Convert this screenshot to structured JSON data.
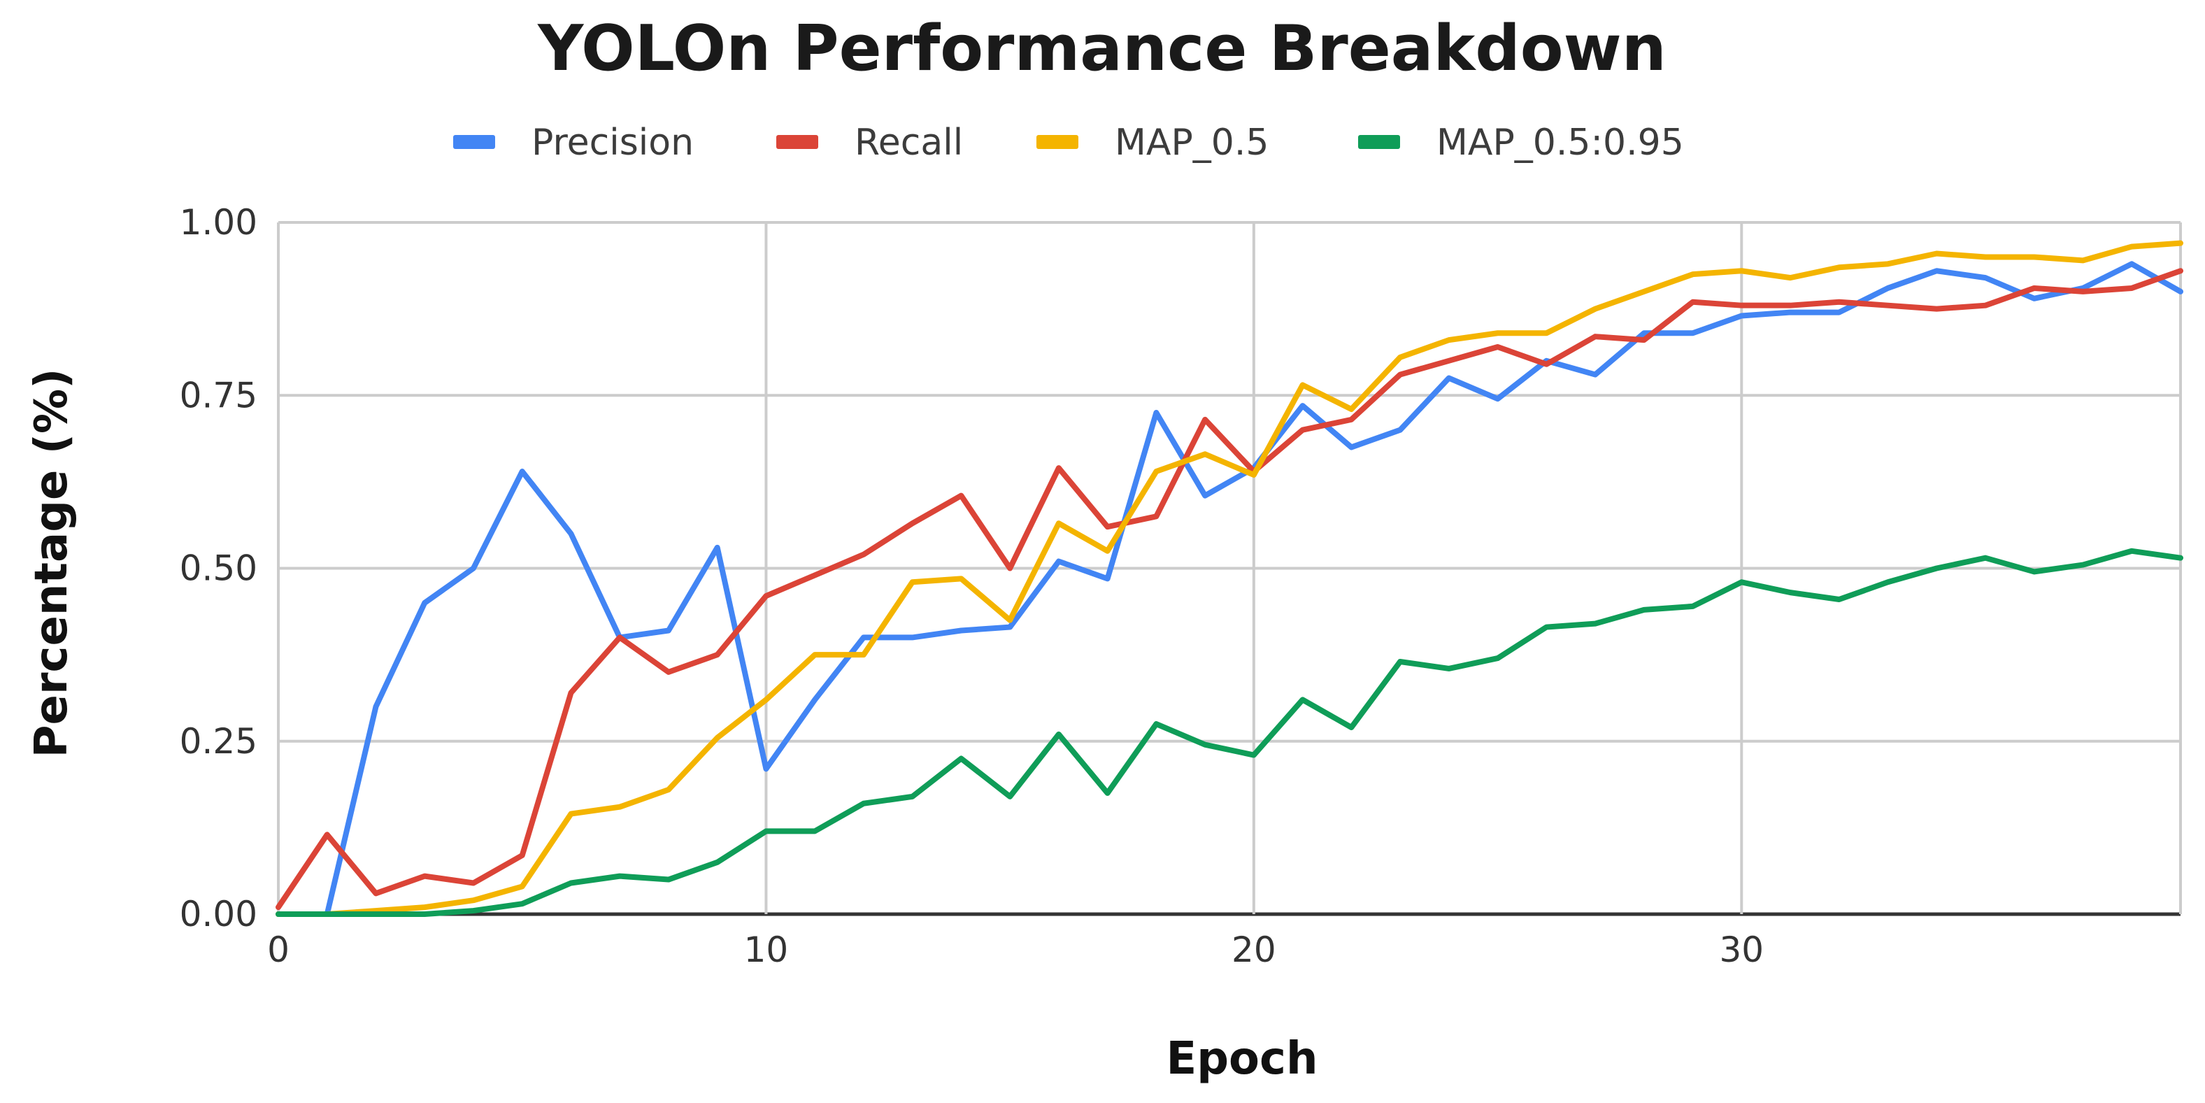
{
  "chart_data": {
    "type": "line",
    "title": "YOLOn Performance Breakdown",
    "xlabel": "Epoch",
    "ylabel": "Percentage (%)",
    "xlim": [
      0,
      39
    ],
    "ylim": [
      0,
      1
    ],
    "x_ticks": [
      "0",
      "10",
      "20",
      "30"
    ],
    "y_ticks": [
      "0.00",
      "0.25",
      "0.50",
      "0.75",
      "1.00"
    ],
    "grid": true,
    "legend_position": "top",
    "x": [
      0,
      1,
      2,
      3,
      4,
      5,
      6,
      7,
      8,
      9,
      10,
      11,
      12,
      13,
      14,
      15,
      16,
      17,
      18,
      19,
      20,
      21,
      22,
      23,
      24,
      25,
      26,
      27,
      28,
      29,
      30,
      31,
      32,
      33,
      34,
      35,
      36,
      37,
      38,
      39
    ],
    "series": [
      {
        "name": "Precision",
        "color": "#4285f4",
        "values": [
          0.0,
          0.0,
          0.3,
          0.45,
          0.5,
          0.64,
          0.55,
          0.4,
          0.41,
          0.53,
          0.21,
          0.31,
          0.4,
          0.4,
          0.41,
          0.415,
          0.51,
          0.485,
          0.725,
          0.605,
          0.645,
          0.735,
          0.675,
          0.7,
          0.775,
          0.745,
          0.8,
          0.78,
          0.84,
          0.84,
          0.865,
          0.87,
          0.87,
          0.905,
          0.93,
          0.92,
          0.89,
          0.905,
          0.94,
          0.9
        ]
      },
      {
        "name": "Recall",
        "color": "#db4437",
        "values": [
          0.01,
          0.115,
          0.03,
          0.055,
          0.045,
          0.085,
          0.32,
          0.4,
          0.35,
          0.375,
          0.46,
          0.49,
          0.52,
          0.565,
          0.605,
          0.5,
          0.645,
          0.56,
          0.575,
          0.715,
          0.64,
          0.7,
          0.715,
          0.78,
          0.8,
          0.82,
          0.795,
          0.835,
          0.83,
          0.885,
          0.88,
          0.88,
          0.885,
          0.88,
          0.875,
          0.88,
          0.905,
          0.9,
          0.905,
          0.93
        ]
      },
      {
        "name": "MAP_0.5",
        "color": "#f4b400",
        "values": [
          0.0,
          0.0,
          0.005,
          0.01,
          0.02,
          0.04,
          0.145,
          0.155,
          0.18,
          0.255,
          0.31,
          0.375,
          0.375,
          0.48,
          0.485,
          0.425,
          0.565,
          0.525,
          0.64,
          0.665,
          0.635,
          0.765,
          0.73,
          0.805,
          0.83,
          0.84,
          0.84,
          0.875,
          0.9,
          0.925,
          0.93,
          0.92,
          0.935,
          0.94,
          0.955,
          0.95,
          0.95,
          0.945,
          0.965,
          0.97
        ]
      },
      {
        "name": "MAP_0.5:0.95",
        "color": "#0f9d58",
        "values": [
          0.0,
          0.0,
          0.0,
          0.0,
          0.005,
          0.015,
          0.045,
          0.055,
          0.05,
          0.075,
          0.12,
          0.12,
          0.16,
          0.17,
          0.225,
          0.17,
          0.26,
          0.175,
          0.275,
          0.245,
          0.23,
          0.31,
          0.27,
          0.365,
          0.355,
          0.37,
          0.415,
          0.42,
          0.44,
          0.445,
          0.48,
          0.465,
          0.455,
          0.48,
          0.5,
          0.515,
          0.495,
          0.505,
          0.525,
          0.515
        ]
      }
    ]
  }
}
